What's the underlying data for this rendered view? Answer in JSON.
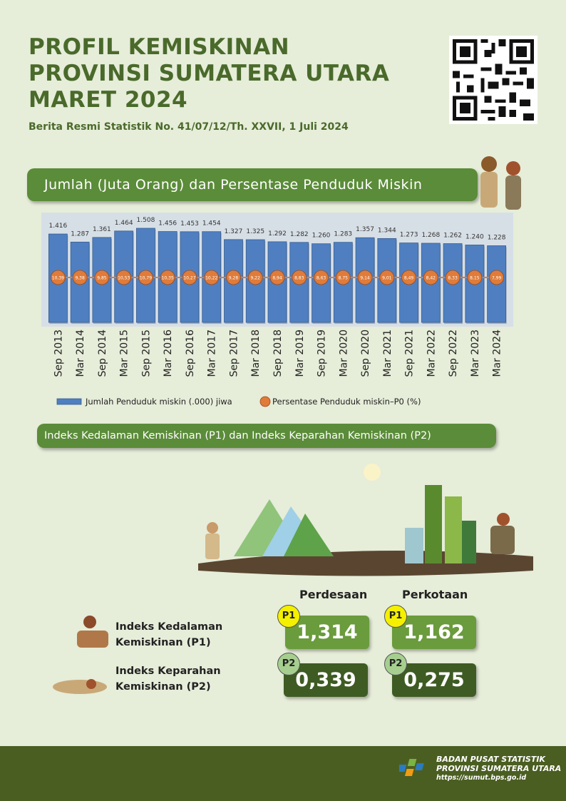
{
  "header": {
    "title": [
      "PROFIL KEMISKINAN",
      "PROVINSI SUMATERA UTARA",
      "MARET 2024"
    ],
    "subtitle": "Berita Resmi Statistik No. 41/07/12/Th. XXVII, 1 Juli 2024"
  },
  "chart_data": {
    "type": "bar",
    "title": "Jumlah (Juta Orang) dan Persentase Penduduk Miskin",
    "categories": [
      "Sep 2013",
      "Mar 2014",
      "Sep 2014",
      "Mar 2015",
      "Sep 2015",
      "Mar 2016",
      "Sep 2016",
      "Mar 2017",
      "Sep 2017",
      "Mar 2018",
      "Sep 2018",
      "Mar 2019",
      "Sep 2019",
      "Mar 2020",
      "Sep 2020",
      "Mar 2021",
      "Sep 2021",
      "Mar 2022",
      "Sep 2022",
      "Mar 2023",
      "Mar 2024"
    ],
    "series": [
      {
        "name": "Jumlah Penduduk miskin (.000) jiwa",
        "type": "bar",
        "color": "#4f7fc0",
        "values": [
          1.416,
          1.287,
          1.361,
          1.464,
          1.508,
          1.456,
          1.453,
          1.454,
          1.327,
          1.325,
          1.292,
          1.282,
          1.26,
          1.283,
          1.357,
          1.344,
          1.273,
          1.268,
          1.262,
          1.24,
          1.228
        ],
        "value_labels": [
          "1.416",
          "1.287",
          "1.361",
          "1.464",
          "1.508",
          "1.456",
          "1.453",
          "1.454",
          "1.327",
          "1.325",
          "1.292",
          "1.282",
          "1.260",
          "1.283",
          "1.357",
          "1.344",
          "1.273",
          "1.268",
          "1.262",
          "1.240",
          "1.228"
        ]
      },
      {
        "name": "Persentase Penduduk miskin–P0 (%)",
        "type": "point",
        "color": "#e07b39",
        "values": [
          10.39,
          9.38,
          9.85,
          10.53,
          10.79,
          10.35,
          10.27,
          10.22,
          9.28,
          9.22,
          8.94,
          8.83,
          8.63,
          8.75,
          9.14,
          9.01,
          8.49,
          8.42,
          8.33,
          8.15,
          7.99
        ],
        "value_labels": [
          "10,39",
          "9,38",
          "9,85",
          "10,53",
          "10,79",
          "10,35",
          "10,27",
          "10,22",
          "9,28",
          "9,22",
          "8,94",
          "8,83",
          "8,63",
          "8,75",
          "9,14",
          "9,01",
          "8,49",
          "8,42",
          "8,33",
          "8,15",
          "7,99"
        ]
      }
    ]
  },
  "section2": {
    "title": "Indeks Kedalaman Kemiskinan (P1) dan Indeks Keparahan Kemiskinan (P2)"
  },
  "indices": {
    "columns": [
      "Perdesaan",
      "Perkotaan"
    ],
    "rows": [
      {
        "label": [
          "Indeks Kedalaman",
          "Kemiskinan (P1)"
        ],
        "badge": "P1",
        "values": [
          "1,314",
          "1,162"
        ]
      },
      {
        "label": [
          "Indeks Keparahan",
          "Kemiskinan (P2)"
        ],
        "badge": "P2",
        "values": [
          "0,339",
          "0,275"
        ]
      }
    ]
  },
  "footer": {
    "org": [
      "BADAN PUSAT STATISTIK",
      "PROVINSI SUMATERA UTARA"
    ],
    "url": "https://sumut.bps.go.id"
  }
}
